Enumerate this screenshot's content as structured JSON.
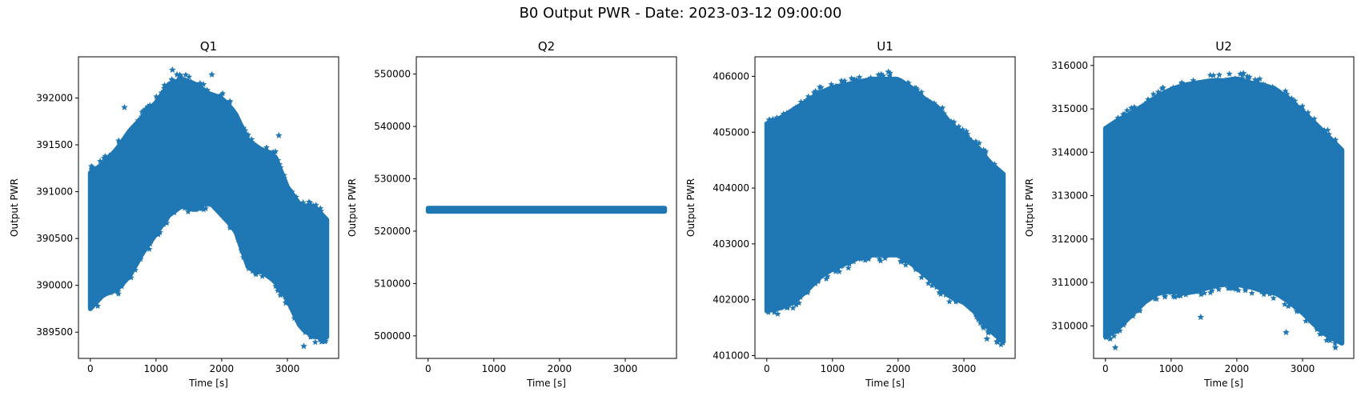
{
  "suptitle": "B0 Output PWR - Date: 2023-03-12 09:00:00",
  "colors": {
    "series": "#1f77b4",
    "axes": "#000000",
    "background": "#ffffff"
  },
  "chart_data": [
    {
      "type": "scatter",
      "title": "Q1",
      "xlabel": "Time [s]",
      "ylabel": "Output PWR",
      "marker": "star",
      "xlim": [
        -180,
        3780
      ],
      "ylim": [
        389220,
        392440
      ],
      "xticks": [
        0,
        1000,
        2000,
        3000
      ],
      "yticks": [
        389500,
        390000,
        390500,
        391000,
        391500,
        392000
      ],
      "grid": false,
      "envelope": {
        "x": [
          0,
          200,
          400,
          600,
          800,
          1000,
          1200,
          1400,
          1600,
          1800,
          2000,
          2200,
          2400,
          2600,
          2800,
          3000,
          3200,
          3400,
          3600
        ],
        "upper": [
          391200,
          391300,
          391450,
          391650,
          391800,
          391950,
          392150,
          392200,
          392150,
          392050,
          392000,
          391850,
          391550,
          391450,
          391400,
          391050,
          390850,
          390850,
          390700
        ],
        "lower": [
          389750,
          389900,
          389950,
          390100,
          390350,
          390550,
          390750,
          390850,
          390800,
          390900,
          390750,
          390600,
          390200,
          390150,
          390050,
          389850,
          389550,
          389450,
          389450
        ]
      },
      "outliers": [
        [
          1250,
          392300
        ],
        [
          1320,
          392250
        ],
        [
          1850,
          392250
        ],
        [
          2870,
          391600
        ],
        [
          3250,
          389350
        ],
        [
          3520,
          389400
        ],
        [
          520,
          391900
        ]
      ]
    },
    {
      "type": "scatter",
      "title": "Q2",
      "xlabel": "Time [s]",
      "ylabel": "Output PWR",
      "marker": "star",
      "xlim": [
        -180,
        3780
      ],
      "ylim": [
        495700,
        553300
      ],
      "xticks": [
        0,
        1000,
        2000,
        3000
      ],
      "yticks": [
        500000,
        510000,
        520000,
        530000,
        540000,
        550000
      ],
      "grid": false,
      "envelope": {
        "x": [
          0,
          3600
        ],
        "upper": [
          524400,
          524400
        ],
        "lower": [
          523800,
          523800
        ]
      },
      "outliers": []
    },
    {
      "type": "scatter",
      "title": "U1",
      "xlabel": "Time [s]",
      "ylabel": "Output PWR",
      "marker": "star",
      "xlim": [
        -180,
        3780
      ],
      "ylim": [
        400950,
        406350
      ],
      "xticks": [
        0,
        1000,
        2000,
        3000
      ],
      "yticks": [
        401000,
        402000,
        403000,
        404000,
        405000,
        406000
      ],
      "grid": false,
      "envelope": {
        "x": [
          0,
          200,
          400,
          600,
          800,
          1000,
          1200,
          1400,
          1600,
          1800,
          2000,
          2200,
          2400,
          2600,
          2800,
          3000,
          3200,
          3400,
          3600
        ],
        "upper": [
          405150,
          405250,
          405400,
          405550,
          405700,
          405800,
          405850,
          405900,
          405950,
          405950,
          405950,
          405800,
          405600,
          405450,
          405150,
          404950,
          404750,
          404450,
          404250
        ],
        "lower": [
          401800,
          401850,
          401950,
          402150,
          402400,
          402550,
          402650,
          402750,
          402800,
          402800,
          402800,
          402650,
          402450,
          402250,
          402050,
          401950,
          401750,
          401450,
          401250
        ]
      },
      "outliers": [
        [
          1850,
          406080
        ],
        [
          3350,
          401300
        ],
        [
          3500,
          401250
        ]
      ]
    },
    {
      "type": "scatter",
      "title": "U2",
      "xlabel": "Time [s]",
      "ylabel": "Output PWR",
      "marker": "star",
      "xlim": [
        -180,
        3780
      ],
      "ylim": [
        309250,
        316200
      ],
      "xticks": [
        0,
        1000,
        2000,
        3000
      ],
      "yticks": [
        310000,
        311000,
        312000,
        313000,
        314000,
        315000,
        316000
      ],
      "grid": false,
      "envelope": {
        "x": [
          0,
          200,
          400,
          600,
          800,
          1000,
          1200,
          1400,
          1600,
          1800,
          2000,
          2200,
          2400,
          2600,
          2800,
          3000,
          3200,
          3400,
          3600
        ],
        "upper": [
          314550,
          314750,
          314900,
          315100,
          315300,
          315450,
          315550,
          315600,
          315650,
          315650,
          315700,
          315600,
          315550,
          315450,
          315200,
          314950,
          314650,
          314350,
          314050
        ],
        "lower": [
          309750,
          309950,
          310250,
          310550,
          310750,
          310800,
          310750,
          310800,
          310900,
          310950,
          310950,
          310900,
          310800,
          310750,
          310550,
          310300,
          310000,
          309750,
          309600
        ]
      },
      "outliers": [
        [
          2100,
          315820
        ],
        [
          150,
          309500
        ],
        [
          3500,
          309500
        ],
        [
          1450,
          310200
        ],
        [
          2750,
          309850
        ]
      ]
    }
  ]
}
